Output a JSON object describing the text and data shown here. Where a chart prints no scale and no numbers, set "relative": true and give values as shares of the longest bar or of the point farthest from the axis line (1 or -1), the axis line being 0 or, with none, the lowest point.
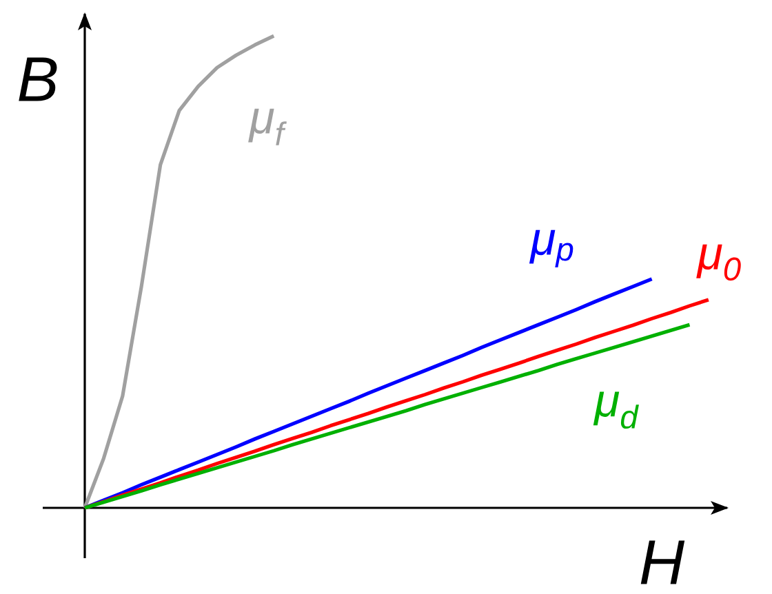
{
  "chart_data": {
    "type": "line",
    "relative": true,
    "xlabel": "H",
    "ylabel": "B",
    "marker": "none",
    "line_style": "solid",
    "categories": [
      null,
      null,
      null,
      null,
      null,
      null,
      null,
      null,
      null,
      null,
      null,
      null,
      null,
      null,
      null,
      null,
      null,
      null,
      null,
      null,
      null,
      null,
      null,
      null,
      null,
      null,
      null,
      null,
      null,
      null,
      null,
      null,
      null,
      null
    ],
    "series": [
      {
        "name": "μ$_{f}$",
        "color": "#a0a0a0",
        "values": [
          0,
          0.105,
          0.237,
          0.47,
          0.727,
          0.842,
          0.893,
          0.933,
          0.959,
          0.981,
          1.0,
          null,
          null,
          null,
          null,
          null,
          null,
          null,
          null,
          null,
          null,
          null,
          null,
          null,
          null,
          null,
          null,
          null,
          null,
          null,
          null,
          null,
          null,
          null
        ]
      },
      {
        "name": "μ$_{p}$",
        "color": "#0000ff",
        "values": [
          0,
          0.016,
          0.032,
          0.049,
          0.065,
          0.081,
          0.097,
          0.113,
          0.129,
          0.146,
          0.162,
          0.178,
          0.194,
          0.21,
          0.226,
          0.243,
          0.259,
          0.275,
          0.291,
          0.307,
          0.323,
          0.34,
          0.356,
          0.372,
          0.388,
          0.404,
          0.42,
          0.437,
          0.453,
          0.469,
          0.485,
          null,
          null,
          null
        ]
      },
      {
        "name": "μ$_{0}$",
        "color": "#ff0000",
        "values": [
          0,
          0.013,
          0.027,
          0.04,
          0.053,
          0.067,
          0.08,
          0.094,
          0.107,
          0.12,
          0.134,
          0.147,
          0.16,
          0.174,
          0.187,
          0.2,
          0.214,
          0.227,
          0.24,
          0.254,
          0.267,
          0.281,
          0.294,
          0.307,
          0.321,
          0.334,
          0.347,
          0.361,
          0.374,
          0.387,
          0.401,
          0.414,
          0.428,
          0.441
        ]
      },
      {
        "name": "μ$_{d}$",
        "color": "#00b000",
        "values": [
          0,
          0.012,
          0.024,
          0.036,
          0.049,
          0.061,
          0.073,
          0.085,
          0.097,
          0.109,
          0.121,
          0.134,
          0.146,
          0.158,
          0.17,
          0.182,
          0.194,
          0.206,
          0.219,
          0.231,
          0.243,
          0.255,
          0.267,
          0.279,
          0.291,
          0.304,
          0.316,
          0.328,
          0.34,
          0.352,
          0.364,
          0.376,
          0.388,
          null
        ]
      }
    ]
  }
}
